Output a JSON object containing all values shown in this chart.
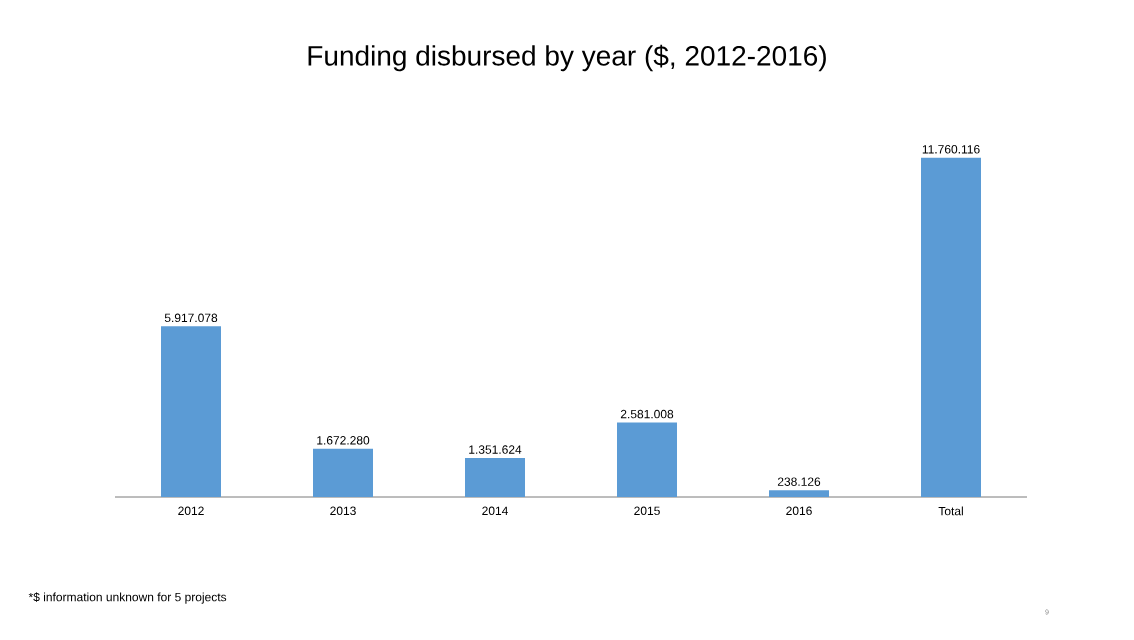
{
  "chart_data": {
    "type": "bar",
    "title": "Funding disbursed by year ($, 2012-2016)",
    "categories": [
      "2012",
      "2013",
      "2014",
      "2015",
      "2016",
      "Total"
    ],
    "values": [
      5917078,
      1672280,
      1351624,
      2581008,
      238126,
      11760116
    ],
    "value_labels": [
      "5.917.078",
      "1.672.280",
      "1.351.624",
      "2.581.008",
      "238.126",
      "11.760.116"
    ],
    "color": "#5b9bd5",
    "annotations": [
      "*$ information unknown for  5 projects",
      "9"
    ]
  }
}
